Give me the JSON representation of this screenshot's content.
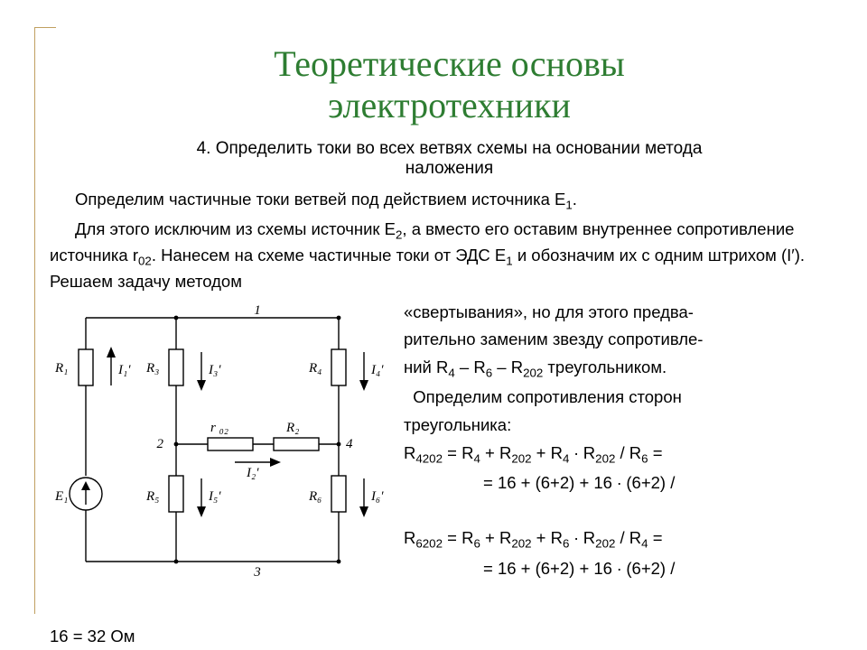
{
  "title_fontsize": 40,
  "title_color": "#2e7d32",
  "body_fontsize": 18.5,
  "subtitle_fontsize": 19,
  "title_line1": "Теоретические основы",
  "title_line2": "электротехники",
  "subtitle_line1": "4. Определить токи во всех ветвях схемы на основании метода",
  "subtitle_line2": "наложения",
  "p1": "Определим частичные токи ветвей под действием источника E",
  "p1_sub": "1",
  "p1_end": ".",
  "p2a": "Для этого исключим из схемы источник E",
  "p2a_sub": "2",
  "p2b": ", а вместо его оставим внутреннее сопротивление источника r",
  "p2b_sub": "02",
  "p2c": ". Нанесем на схеме частичные токи от ЭДС E",
  "p2c_sub": "1",
  "p2d": " и обозначим их с одним штрихом (I′). Решаем задачу методом",
  "r1": "«свертывания», но для этого предва-",
  "r2": "рительно заменим звезду сопротивле-",
  "r3a": "ний R",
  "r3a_s": "4",
  "r3b": " – R",
  "r3b_s": "6",
  "r3c": " – R",
  "r3c_s": "202",
  "r3d": " треугольником.",
  "r4": "  Определим сопротивления сторон",
  "r5": "треугольника:",
  "eq1a": "R",
  "eq1a_s": "4202",
  "eq1b": " = R",
  "eq1b_s": "4",
  "eq1c": " + R",
  "eq1c_s": "202",
  "eq1d": " + R",
  "eq1d_s": "4",
  "eq1e": " ∙ R",
  "eq1e_s": "202",
  "eq1f": " / R",
  "eq1f_s": "6",
  "eq1g": " =",
  "eq1r": "= 16 + (6+2) + 16 ∙ (6+2) /",
  "eq2a": "R",
  "eq2a_s": "6202",
  "eq2b": " = R",
  "eq2b_s": "6",
  "eq2c": " + R",
  "eq2c_s": "202",
  "eq2d": " + R",
  "eq2d_s": "6",
  "eq2e": " ∙ R",
  "eq2e_s": "202",
  "eq2f": " / R",
  "eq2f_s": "4",
  "eq2g": " =",
  "eq2r": "= 16 + (6+2) + 16 ∙ (6+2) /",
  "cut": "16 = 32 Ом",
  "diagram": {
    "labels": {
      "R1": "R₁",
      "R3": "R₃",
      "R4": "R₄",
      "R5": "R₅",
      "R6": "R₆",
      "R2": "R₂",
      "r02": "r ₀₂",
      "E1": "E₁",
      "I1": "I₁′",
      "I2": "I₂′",
      "I3": "I₃′",
      "I4": "I₄′",
      "I5": "I₅′",
      "I6": "I₆′",
      "n1": "1",
      "n2": "2",
      "n3": "3",
      "n4": "4"
    },
    "stroke": "#000000",
    "stroke_width": 1.4,
    "font": "italic 15px Georgia"
  }
}
